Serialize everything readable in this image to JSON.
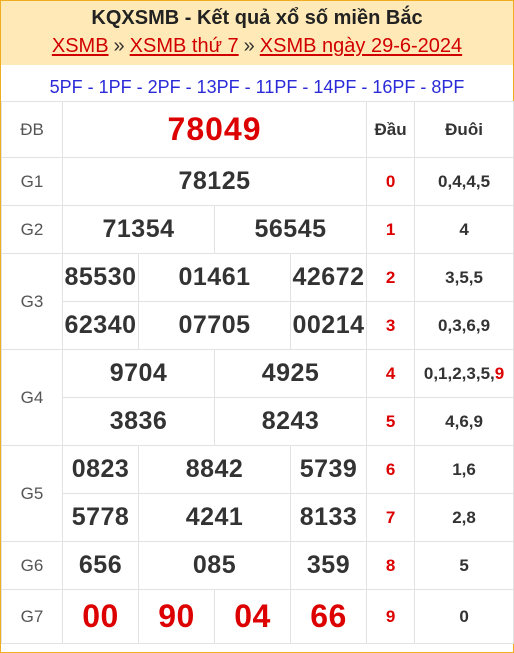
{
  "header": {
    "title": "KQXSMB - Kết quả xổ số miền Bắc",
    "crumbs": [
      "XSMB",
      "XSMB thứ 7",
      "XSMB ngày 29-6-2024"
    ],
    "separator": "»"
  },
  "pf_codes": [
    "5PF",
    "1PF",
    "2PF",
    "13PF",
    "11PF",
    "14PF",
    "16PF",
    "8PF"
  ],
  "pf_separator": "-",
  "columns": {
    "dau": "Đầu",
    "duoi": "Đuôi"
  },
  "prizes": {
    "db": {
      "label": "ĐB",
      "numbers": [
        "78049"
      ]
    },
    "g1": {
      "label": "G1",
      "numbers": [
        "78125"
      ]
    },
    "g2": {
      "label": "G2",
      "numbers": [
        "71354",
        "56545"
      ]
    },
    "g3": {
      "label": "G3",
      "numbers": [
        "85530",
        "01461",
        "42672",
        "62340",
        "07705",
        "00214"
      ]
    },
    "g4": {
      "label": "G4",
      "numbers": [
        "9704",
        "4925",
        "3836",
        "8243"
      ]
    },
    "g5": {
      "label": "G5",
      "numbers": [
        "0823",
        "8842",
        "5739",
        "5778",
        "4241",
        "8133"
      ]
    },
    "g6": {
      "label": "G6",
      "numbers": [
        "656",
        "085",
        "359"
      ]
    },
    "g7": {
      "label": "G7",
      "numbers": [
        "00",
        "90",
        "04",
        "66"
      ]
    }
  },
  "loto": [
    {
      "dau": "0",
      "duoi": "0,4,4,5"
    },
    {
      "dau": "1",
      "duoi": "4"
    },
    {
      "dau": "2",
      "duoi": "3,5,5"
    },
    {
      "dau": "3",
      "duoi": "0,3,6,9"
    },
    {
      "dau": "4",
      "duoi": "0,1,2,3,5,",
      "duoi_highlight": "9"
    },
    {
      "dau": "5",
      "duoi": "4,6,9"
    },
    {
      "dau": "6",
      "duoi": "1,6"
    },
    {
      "dau": "7",
      "duoi": "2,8"
    },
    {
      "dau": "8",
      "duoi": "5"
    },
    {
      "dau": "9",
      "duoi": "0"
    }
  ],
  "colors": {
    "accent_red": "#dd0000",
    "header_bg": "#ffeab7",
    "border_orange": "#f0ad22",
    "link_blue": "#2a2ad8"
  }
}
